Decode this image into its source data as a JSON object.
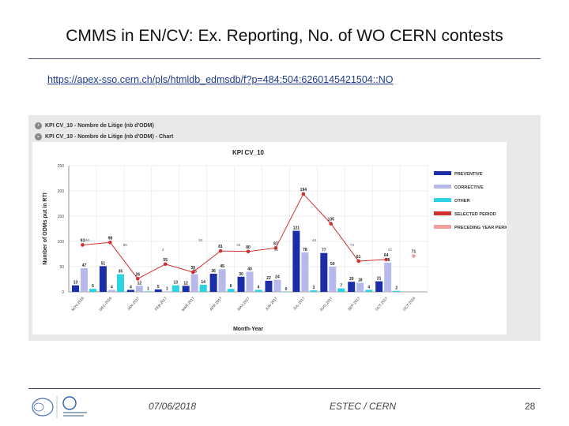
{
  "slide": {
    "title": "CMMS in EN/CV: Ex. Reporting, No. of WO CERN contests",
    "link": "https://apex-sso.cern.ch/pls/htmldb_edmsdb/f?p=484:504:6260145421504::NO"
  },
  "report": {
    "row1_label": "KPI CV_10 - Nombre de Litige (nb d'ODM)",
    "row2_label": "KPI CV_10 - Nombre de Litige (nb d'ODM) - Chart"
  },
  "chart_data": {
    "type": "bar",
    "title": "KPI CV_10",
    "xlabel": "Month-Year",
    "ylabel": "Number of ODMs put in RTI",
    "ylim": [
      0,
      250
    ],
    "yticks": [
      "0",
      "50",
      "100",
      "150",
      "200",
      "250"
    ],
    "categories": [
      "NOV-2016",
      "DEC-2016",
      "JAN-2017",
      "FEB-2017",
      "MAR-2017",
      "APR-2017",
      "MAY-2017",
      "JUN-2017",
      "JUL-2017",
      "AUG-2017",
      "SEP-2017",
      "OCT-2017",
      "OCT-2018"
    ],
    "legend_placement": "right",
    "series": [
      {
        "name": "PREVENTIVE",
        "kind": "bar",
        "color": "#1b2ea8",
        "values": [
          13,
          51,
          4,
          5,
          12,
          36,
          30,
          22,
          121,
          77,
          20,
          21,
          null
        ],
        "labels": [
          "13",
          "51",
          "4",
          "5",
          "12",
          "36",
          "30",
          "22",
          "121",
          "77",
          "20",
          "21",
          ""
        ]
      },
      {
        "name": "CORRECTIVE",
        "kind": "bar",
        "color": "#b6b9ea",
        "values": [
          47,
          4,
          12,
          1,
          35,
          45,
          40,
          24,
          78,
          50,
          18,
          58,
          null
        ],
        "labels": [
          "47",
          "4",
          "12",
          "1",
          "35",
          "45",
          "40",
          "24",
          "78",
          "50",
          "18",
          "58",
          ""
        ]
      },
      {
        "name": "OTHER",
        "kind": "bar",
        "color": "#2bd4e0",
        "values": [
          6,
          35,
          1,
          13,
          14,
          6,
          4,
          0,
          3,
          7,
          4,
          2,
          null
        ],
        "labels": [
          "6",
          "35",
          "1",
          "13",
          "14",
          "6",
          "4",
          "0",
          "3",
          "7",
          "4",
          "2",
          ""
        ]
      },
      {
        "name": "SELECTED PERIOD",
        "kind": "line",
        "color": "#d23030",
        "values": [
          93,
          98,
          26,
          55,
          39,
          81,
          80,
          87,
          194,
          135,
          61,
          64,
          null
        ],
        "labels": [
          "93",
          "98",
          "26",
          "55",
          "39",
          "81",
          "80",
          "87",
          "194",
          "135",
          "61",
          "64",
          ""
        ]
      },
      {
        "name": "PRECEDING YEAR PERIOD",
        "kind": "line",
        "color": "#f0a0a0",
        "values": [
          null,
          null,
          null,
          null,
          null,
          null,
          null,
          null,
          null,
          null,
          null,
          null,
          71
        ],
        "labels": [
          "",
          "",
          "",
          "",
          "",
          "",
          "",
          "",
          "",
          "",
          "",
          "",
          "71"
        ]
      }
    ],
    "extra_point_labels": [
      "66",
      "96",
      "2",
      "52",
      "34",
      "61",
      "44",
      "73",
      "42"
    ],
    "grid": true
  },
  "footer": {
    "date": "07/06/2018",
    "org": "ESTEC / CERN",
    "page": "28"
  }
}
